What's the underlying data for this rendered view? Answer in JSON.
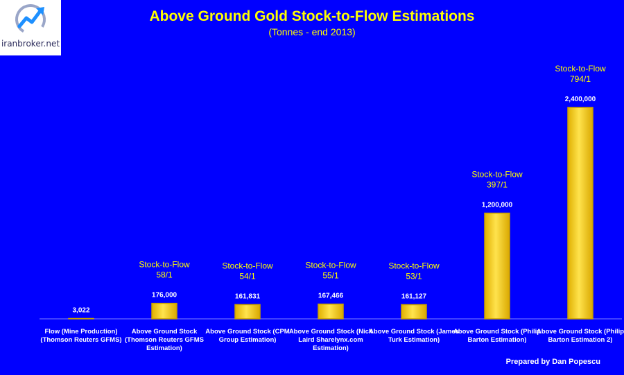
{
  "logo": {
    "text": "iranbroker.net"
  },
  "footer": {
    "text": "Prepared by Dan Popescu"
  },
  "colors": {
    "background": "#0000ff",
    "bar": "#ffd700",
    "bar_edge": "#c8a000",
    "text_yellow": "#ffff00",
    "label_white": "#ffffff"
  },
  "chart_data": {
    "type": "bar",
    "title": "Above Ground Gold Stock-to-Flow Estimations",
    "subtitle": "(Tonnes - end 2013)",
    "xlabel": "",
    "ylabel": "",
    "ylim": [
      0,
      2400000
    ],
    "grid": false,
    "categories": [
      [
        "Flow (Mine Production)",
        "(Thomson Reuters GFMS)"
      ],
      [
        "Above Ground Stock",
        "(Thomson Reuters GFMS",
        "Estimation)"
      ],
      [
        "Above Ground Stock (CPM",
        "Group Estimation)"
      ],
      [
        "Above Ground Stock (Nick",
        "Laird Sharelynx.com",
        "Estimation)"
      ],
      [
        "Above Ground Stock (James",
        "Turk Estimation)"
      ],
      [
        "Above Ground Stock (Philip",
        "Barton Estimation)"
      ],
      [
        "Above Ground Stock (Philip",
        "Barton Estimation 2)"
      ]
    ],
    "values": [
      3022,
      176000,
      161831,
      167466,
      161127,
      1200000,
      2400000
    ],
    "value_labels": [
      "3,022",
      "176,000",
      "161,831",
      "167,466",
      "161,127",
      "1,200,000",
      "2,400,000"
    ],
    "annotations": [
      null,
      [
        "Stock-to-Flow",
        "58/1"
      ],
      [
        "Stock-to-Flow",
        "54/1"
      ],
      [
        "Stock-to-Flow",
        "55/1"
      ],
      [
        "Stock-to-Flow",
        "53/1"
      ],
      [
        "Stock-to-Flow",
        "397/1"
      ],
      [
        "Stock-to-Flow",
        "794/1"
      ]
    ]
  }
}
